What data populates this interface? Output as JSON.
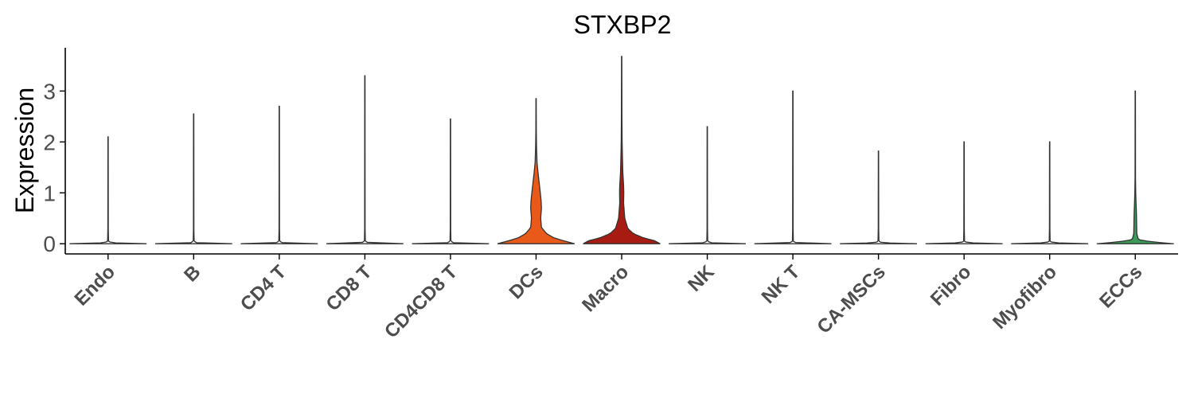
{
  "chart_data": {
    "type": "violin",
    "title": "STXBP2",
    "xlabel": "",
    "ylabel": "Expression",
    "ylim": [
      -0.2,
      3.85
    ],
    "yticks": [
      0,
      1,
      2,
      3
    ],
    "grid": false,
    "legend": "none",
    "categories": [
      "Endo",
      "B",
      "CD4 T",
      "CD8 T",
      "CD4CD8 T",
      "DCs",
      "Macro",
      "NK",
      "NK T",
      "CA-MSCs",
      "Fibro",
      "Myofibro",
      "ECCs"
    ],
    "series": [
      {
        "name": "Endo",
        "max": 2.1,
        "color": "#ffffff",
        "profile": [
          [
            0,
            1.0
          ],
          [
            0.02,
            0.08
          ],
          [
            0.05,
            0.012
          ],
          [
            0.3,
            0.006
          ],
          [
            2.1,
            0.004
          ]
        ]
      },
      {
        "name": "B",
        "max": 2.55,
        "color": "#ffffff",
        "profile": [
          [
            0,
            1.0
          ],
          [
            0.02,
            0.08
          ],
          [
            0.05,
            0.012
          ],
          [
            0.3,
            0.006
          ],
          [
            2.55,
            0.004
          ]
        ]
      },
      {
        "name": "CD4 T",
        "max": 2.7,
        "color": "#ffffff",
        "profile": [
          [
            0,
            1.0
          ],
          [
            0.02,
            0.08
          ],
          [
            0.05,
            0.012
          ],
          [
            0.3,
            0.006
          ],
          [
            2.7,
            0.004
          ]
        ]
      },
      {
        "name": "CD8 T",
        "max": 3.3,
        "color": "#ffffff",
        "profile": [
          [
            0,
            1.0
          ],
          [
            0.02,
            0.08
          ],
          [
            0.05,
            0.012
          ],
          [
            0.3,
            0.006
          ],
          [
            3.3,
            0.004
          ]
        ]
      },
      {
        "name": "CD4CD8 T",
        "max": 2.45,
        "color": "#ffffff",
        "profile": [
          [
            0,
            1.0
          ],
          [
            0.02,
            0.08
          ],
          [
            0.05,
            0.012
          ],
          [
            0.3,
            0.006
          ],
          [
            2.45,
            0.004
          ]
        ]
      },
      {
        "name": "DCs",
        "max": 2.85,
        "color": "#e8591a",
        "profile": [
          [
            0,
            1.0
          ],
          [
            0.06,
            0.7
          ],
          [
            0.12,
            0.45
          ],
          [
            0.2,
            0.27
          ],
          [
            0.32,
            0.14
          ],
          [
            0.5,
            0.12
          ],
          [
            0.7,
            0.14
          ],
          [
            0.85,
            0.13
          ],
          [
            1.0,
            0.11
          ],
          [
            1.2,
            0.08
          ],
          [
            1.4,
            0.05
          ],
          [
            1.6,
            0.025
          ],
          [
            1.9,
            0.012
          ],
          [
            2.2,
            0.006
          ],
          [
            2.85,
            0.004
          ]
        ]
      },
      {
        "name": "Macro",
        "max": 3.68,
        "color": "#a71b12",
        "profile": [
          [
            0,
            1.0
          ],
          [
            0.06,
            0.85
          ],
          [
            0.12,
            0.55
          ],
          [
            0.2,
            0.3
          ],
          [
            0.3,
            0.16
          ],
          [
            0.5,
            0.08
          ],
          [
            0.8,
            0.05
          ],
          [
            1.0,
            0.055
          ],
          [
            1.15,
            0.05
          ],
          [
            1.4,
            0.03
          ],
          [
            1.7,
            0.02
          ],
          [
            2.0,
            0.012
          ],
          [
            2.5,
            0.007
          ],
          [
            3.68,
            0.004
          ]
        ]
      },
      {
        "name": "NK",
        "max": 2.3,
        "color": "#ffffff",
        "profile": [
          [
            0,
            1.0
          ],
          [
            0.02,
            0.08
          ],
          [
            0.05,
            0.012
          ],
          [
            0.3,
            0.006
          ],
          [
            2.3,
            0.004
          ]
        ]
      },
      {
        "name": "NK T",
        "max": 3.0,
        "color": "#ffffff",
        "profile": [
          [
            0,
            1.0
          ],
          [
            0.02,
            0.08
          ],
          [
            0.05,
            0.012
          ],
          [
            0.3,
            0.006
          ],
          [
            3.0,
            0.004
          ]
        ]
      },
      {
        "name": "CA-MSCs",
        "max": 1.82,
        "color": "#ffffff",
        "profile": [
          [
            0,
            1.0
          ],
          [
            0.02,
            0.08
          ],
          [
            0.05,
            0.012
          ],
          [
            0.3,
            0.006
          ],
          [
            1.82,
            0.004
          ]
        ]
      },
      {
        "name": "Fibro",
        "max": 2.0,
        "color": "#ffffff",
        "profile": [
          [
            0,
            1.0
          ],
          [
            0.02,
            0.08
          ],
          [
            0.05,
            0.012
          ],
          [
            0.3,
            0.006
          ],
          [
            2.0,
            0.004
          ]
        ]
      },
      {
        "name": "Myofibro",
        "max": 2.0,
        "color": "#ffffff",
        "profile": [
          [
            0,
            1.0
          ],
          [
            0.02,
            0.08
          ],
          [
            0.05,
            0.012
          ],
          [
            0.3,
            0.006
          ],
          [
            2.0,
            0.004
          ]
        ]
      },
      {
        "name": "ECCs",
        "max": 3.0,
        "color": "#3b9a57",
        "profile": [
          [
            0,
            1.0
          ],
          [
            0.04,
            0.4
          ],
          [
            0.08,
            0.08
          ],
          [
            0.2,
            0.04
          ],
          [
            0.4,
            0.035
          ],
          [
            0.6,
            0.03
          ],
          [
            0.8,
            0.02
          ],
          [
            1.0,
            0.012
          ],
          [
            1.3,
            0.006
          ],
          [
            3.0,
            0.004
          ]
        ]
      }
    ]
  }
}
